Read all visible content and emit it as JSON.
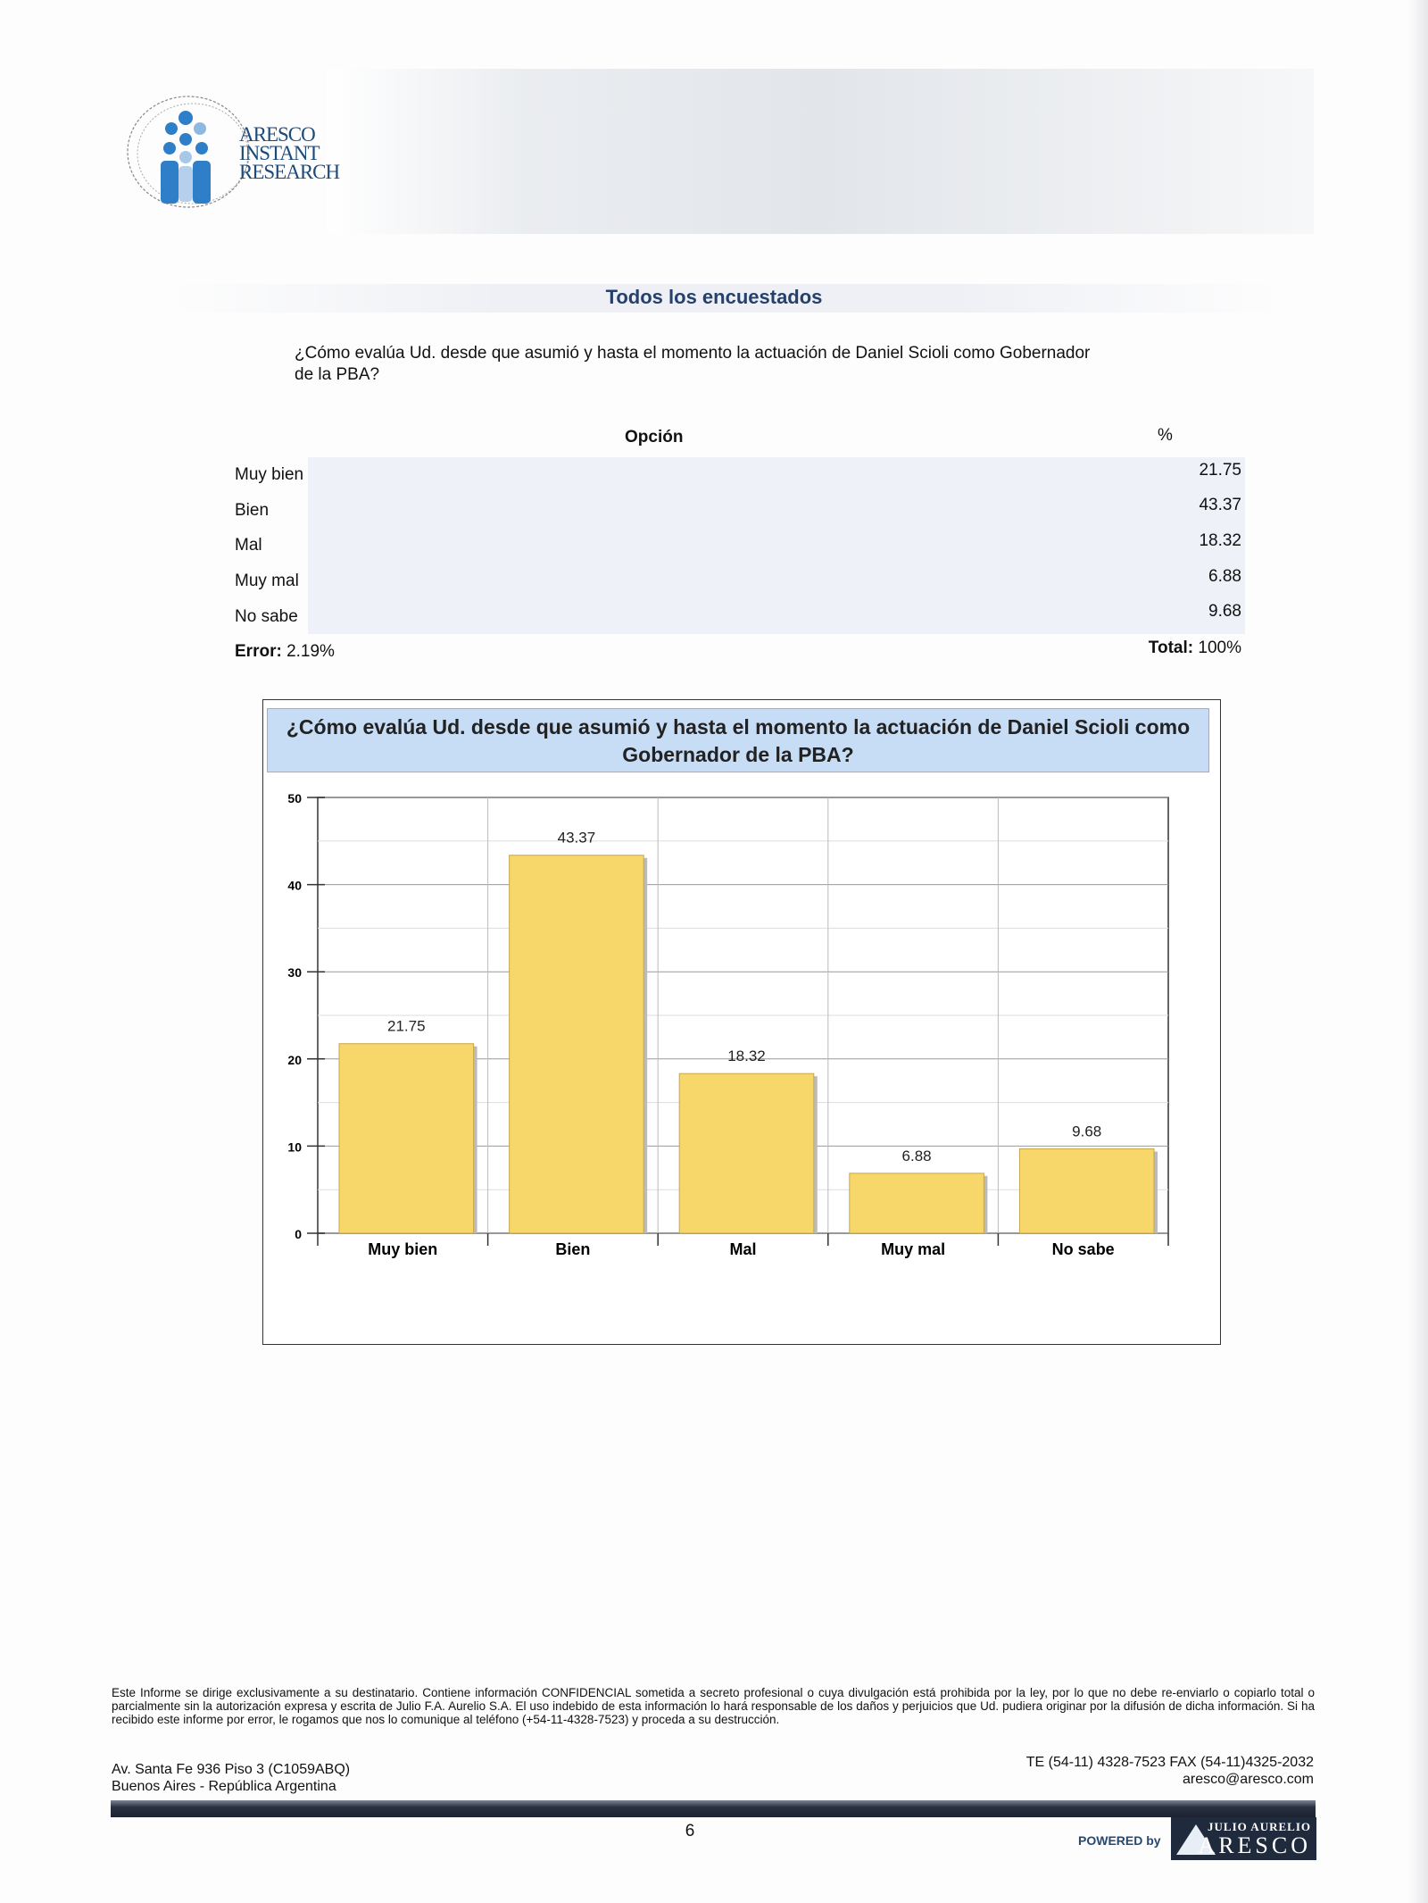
{
  "header": {
    "logo_text": [
      "ARESCO",
      "INSTANT",
      "RESEARCH"
    ],
    "section_title": "Todos los encuestados"
  },
  "question": "¿Cómo evalúa Ud. desde que asumió y hasta el momento la actuación de Daniel Scioli como Gobernador de la PBA?",
  "table": {
    "col_option": "Opción",
    "col_pct": "%",
    "rows": [
      {
        "label": "Muy bien",
        "value": "21.75"
      },
      {
        "label": "Bien",
        "value": "43.37"
      },
      {
        "label": "Mal",
        "value": "18.32"
      },
      {
        "label": "Muy mal",
        "value": "6.88"
      },
      {
        "label": "No sabe",
        "value": "9.68"
      }
    ],
    "error_label": "Error:",
    "error_value": "2.19%",
    "total_label": "Total:",
    "total_value": "100%"
  },
  "chart_data": {
    "type": "bar",
    "title": "¿Cómo evalúa Ud. desde que asumió y hasta el momento la actuación de Daniel Scioli como Gobernador de la PBA?",
    "categories": [
      "Muy bien",
      "Bien",
      "Mal",
      "Muy mal",
      "No sabe"
    ],
    "values": [
      21.75,
      43.37,
      18.32,
      6.88,
      9.68
    ],
    "data_labels": [
      "21.75",
      "43.37",
      "18.32",
      "6.88",
      "9.68"
    ],
    "ylim": [
      0,
      50
    ],
    "yticks": [
      0,
      10,
      20,
      30,
      40,
      50
    ],
    "grid": true,
    "bar_color": "#f7d66a",
    "title_bg": "#c7dcf5"
  },
  "footer": {
    "disclaimer": "Este Informe se dirige exclusivamente a su destinatario.  Contiene información CONFIDENCIAL sometida a secreto profesional o cuya divulgación está prohibida por la ley, por lo que no debe re-enviarlo o copiarlo total o parcialmente sin la autorización expresa y escrita de  Julio F.A.  Aurelio S.A.   El uso indebido de esta información lo hará responsable de los daños y  perjuicios que Ud. pudiera  originar por  la difusión  de dicha información.   Si ha recibido este informe por error,  le rogamos que nos lo comunique  al teléfono  (+54-11-4328-7523)  y proceda a su destrucción.",
    "address_1": "Av. Santa Fe 936  Piso 3 (C1059ABQ)",
    "address_2": "Buenos Aires - República Argentina",
    "phone": "TE (54-11) 4328-7523  FAX (54-11)4325-2032",
    "email": "aresco@aresco.com",
    "page_number": "6",
    "powered_by": "POWERED by",
    "brand_top": "JULIO AURELIO",
    "brand_main": "ARESCO"
  }
}
